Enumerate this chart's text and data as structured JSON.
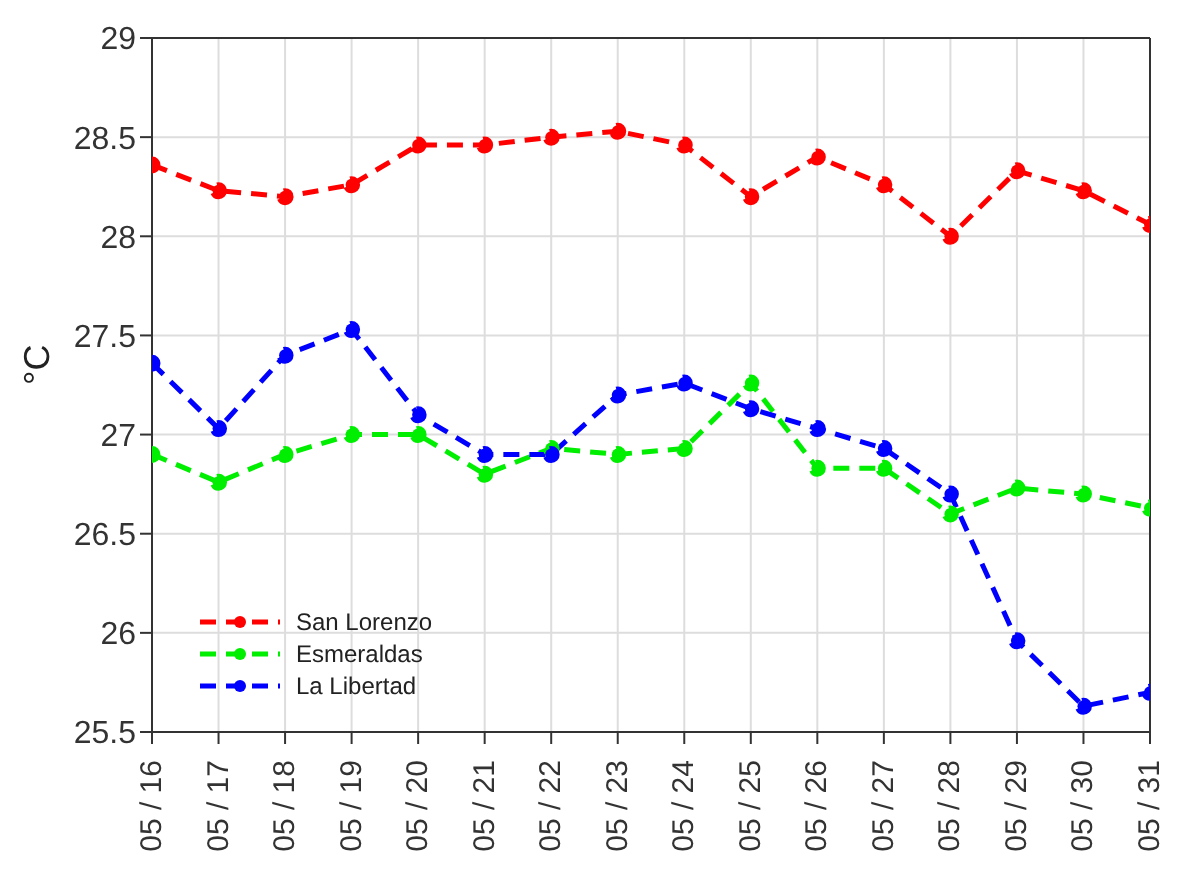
{
  "chart_data": {
    "type": "line",
    "ylabel": "°C",
    "categories": [
      "05 / 16",
      "05 / 17",
      "05 / 18",
      "05 / 19",
      "05 / 20",
      "05 / 21",
      "05 / 22",
      "05 / 23",
      "05 / 24",
      "05 / 25",
      "05 / 26",
      "05 / 27",
      "05 / 28",
      "05 / 29",
      "05 / 30",
      "05 / 31"
    ],
    "series": [
      {
        "name": "San Lorenzo",
        "color": "#ff0000",
        "values": [
          28.36,
          28.23,
          28.2,
          28.26,
          28.46,
          28.46,
          28.5,
          28.53,
          28.46,
          28.2,
          28.4,
          28.26,
          28.0,
          28.33,
          28.23,
          28.06
        ]
      },
      {
        "name": "Esmeraldas",
        "color": "#00ee00",
        "values": [
          26.9,
          26.76,
          26.9,
          27.0,
          27.0,
          26.8,
          26.93,
          26.9,
          26.93,
          27.26,
          26.83,
          26.83,
          26.6,
          26.73,
          26.7,
          26.63
        ]
      },
      {
        "name": "La Libertad",
        "color": "#0000ff",
        "values": [
          27.36,
          27.03,
          27.4,
          27.53,
          27.1,
          26.9,
          26.9,
          27.2,
          27.26,
          27.13,
          27.03,
          26.93,
          26.7,
          25.96,
          25.63,
          25.7
        ]
      }
    ],
    "ylim": [
      25.5,
      29
    ],
    "yticks": [
      25.5,
      26,
      26.5,
      27,
      27.5,
      28,
      28.5,
      29
    ],
    "grid": true,
    "legend": "bottom left",
    "marker": "circle",
    "line_style": "dashed"
  }
}
